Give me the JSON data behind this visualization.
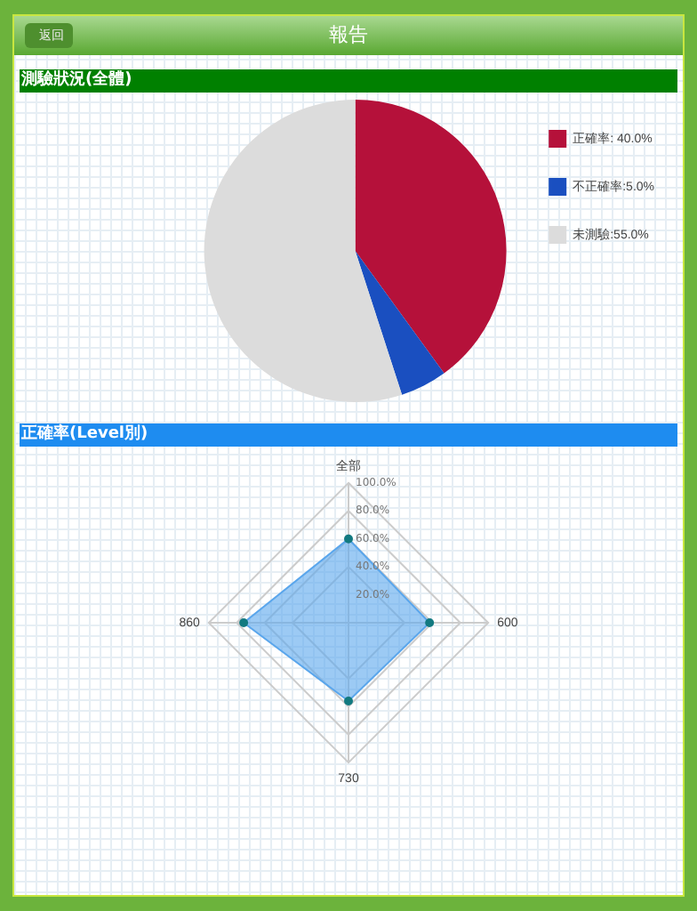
{
  "chart_data": [
    {
      "type": "other",
      "title": "報告",
      "annotations": [
        "返回"
      ]
    },
    {
      "type": "pie",
      "title": "測驗狀況(全體)",
      "categories": [
        "正確率: 40.0%",
        "不正確率:5.0%",
        "未測驗:55.0%"
      ],
      "values": [
        40,
        5,
        55
      ],
      "colors": [
        "#b5113a",
        "#1a4fc0",
        "#dcdcdc"
      ],
      "legend": "right"
    },
    {
      "type": "radar",
      "title": "正確率(Level別)",
      "categories": [
        "全部",
        "600",
        "730",
        "860"
      ],
      "series": [
        {
          "color": "#5aa6ec",
          "values": [
            60,
            58,
            56,
            75
          ]
        }
      ],
      "ylim": [
        0,
        100
      ],
      "yticks": [
        {
          "value": 20,
          "label": "20.0%"
        },
        {
          "value": 40,
          "label": "40.0%"
        },
        {
          "value": 60,
          "label": "60.0%"
        },
        {
          "value": 80,
          "label": "80.0%"
        },
        {
          "value": 100,
          "label": "100.0%"
        }
      ],
      "grid": true,
      "marker": "circle"
    }
  ]
}
